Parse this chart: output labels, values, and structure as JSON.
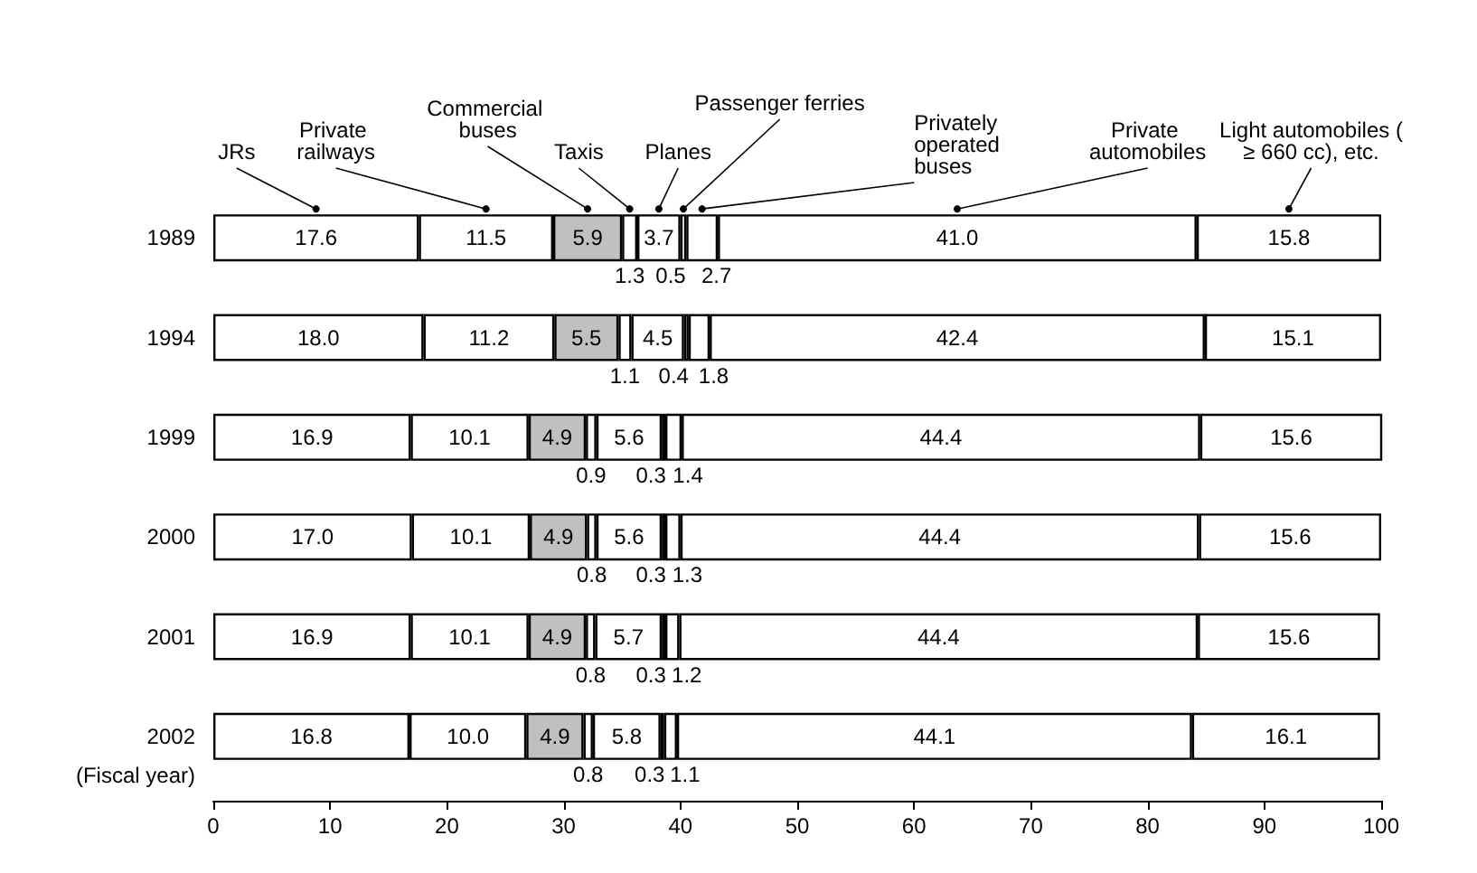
{
  "chart_data": {
    "type": "bar",
    "orientation": "horizontal",
    "stacked": true,
    "ylabel": "(Fiscal year)",
    "categories": [
      "1989",
      "1994",
      "1999",
      "2000",
      "2001",
      "2002"
    ],
    "xlim": [
      0,
      100
    ],
    "xticks": [
      0,
      10,
      20,
      30,
      40,
      50,
      60,
      70,
      80,
      90,
      100
    ],
    "grid": false,
    "legend": false,
    "series": [
      {
        "name": "JRs",
        "color": "#ffffff",
        "values": [
          17.6,
          18.0,
          16.9,
          17.0,
          16.9,
          16.8
        ],
        "value_labels": [
          "17.6",
          "18.0",
          "16.9",
          "17.0",
          "16.9",
          "16.8"
        ]
      },
      {
        "name": "Private railways",
        "color": "#ffffff",
        "values": [
          11.5,
          11.2,
          10.1,
          10.1,
          10.1,
          10.0
        ],
        "value_labels": [
          "11.5",
          "11.2",
          "10.1",
          "10.1",
          "10.1",
          "10.0"
        ]
      },
      {
        "name": "Commercial buses",
        "color": "#c0c0c0",
        "values": [
          5.9,
          5.5,
          4.9,
          4.9,
          4.9,
          4.9
        ],
        "value_labels": [
          "5.9",
          "5.5",
          "4.9",
          "4.9",
          "4.9",
          "4.9"
        ]
      },
      {
        "name": "Taxis",
        "color": "#ffffff",
        "values": [
          1.3,
          1.1,
          0.9,
          0.8,
          0.8,
          0.8
        ],
        "value_labels": [
          "1.3",
          "1.1",
          "0.9",
          "0.8",
          "0.8",
          "0.8"
        ]
      },
      {
        "name": "Planes",
        "color": "#ffffff",
        "values": [
          3.7,
          4.5,
          5.6,
          5.6,
          5.7,
          5.8
        ],
        "value_labels": [
          "3.7",
          "4.5",
          "5.6",
          "5.6",
          "5.7",
          "5.8"
        ]
      },
      {
        "name": "Passenger ferries",
        "color": "#ffffff",
        "values": [
          0.5,
          0.4,
          0.3,
          0.3,
          0.3,
          0.3
        ],
        "value_labels": [
          "0.5",
          "0.4",
          "0.3",
          "0.3",
          "0.3",
          "0.3"
        ]
      },
      {
        "name": "Privately operated buses",
        "color": "#ffffff",
        "values": [
          2.7,
          1.8,
          1.4,
          1.3,
          1.2,
          1.1
        ],
        "value_labels": [
          "2.7",
          "1.8",
          "1.4",
          "1.3",
          "1.2",
          "1.1"
        ]
      },
      {
        "name": "Private automobiles",
        "color": "#ffffff",
        "values": [
          41.0,
          42.4,
          44.4,
          44.4,
          44.4,
          44.1
        ],
        "value_labels": [
          "41.0",
          "42.4",
          "44.4",
          "44.4",
          "44.4",
          "44.1"
        ]
      },
      {
        "name": "Light automobiles (≥ 660 cc), etc.",
        "color": "#ffffff",
        "values": [
          15.8,
          15.1,
          15.6,
          15.6,
          15.6,
          16.1
        ],
        "value_labels": [
          "15.8",
          "15.1",
          "15.6",
          "15.6",
          "15.6",
          "16.1"
        ]
      }
    ]
  }
}
